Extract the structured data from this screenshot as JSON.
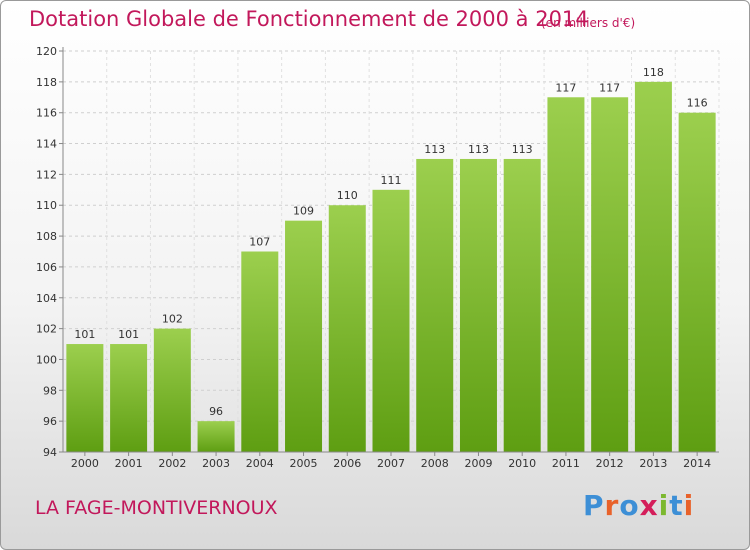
{
  "header": {
    "title": "Dotation Globale de Fonctionnement de 2000 à 2014",
    "unit": "(en milliers d'€)"
  },
  "footer": {
    "commune": "LA FAGE-MONTIVERNOUX",
    "logo_text": "Proxiti"
  },
  "colors": {
    "title": "#c2185b",
    "bar_top": "#9ccf4e",
    "bar_bottom": "#5e9e12",
    "logo": [
      "#3d8fd6",
      "#e8622a",
      "#3d8fd6",
      "#d41e5a",
      "#7cb82f",
      "#3d8fd6",
      "#e8622a"
    ]
  },
  "chart_data": {
    "type": "bar",
    "categories": [
      "2000",
      "2001",
      "2002",
      "2003",
      "2004",
      "2005",
      "2006",
      "2007",
      "2008",
      "2009",
      "2010",
      "2011",
      "2012",
      "2013",
      "2014"
    ],
    "values": [
      101,
      101,
      102,
      96,
      107,
      109,
      110,
      111,
      113,
      113,
      113,
      117,
      117,
      118,
      116
    ],
    "data_labels": [
      "101",
      "101",
      "102",
      "96",
      "107",
      "109",
      "110",
      "111",
      "113",
      "113",
      "113",
      "117",
      "117",
      "118",
      "116"
    ],
    "yticks": [
      "94",
      "96",
      "98",
      "100",
      "102",
      "104",
      "106",
      "108",
      "110",
      "112",
      "114",
      "116",
      "118",
      "120"
    ],
    "ylim": [
      94,
      120
    ],
    "grid": true,
    "legend": "none"
  }
}
